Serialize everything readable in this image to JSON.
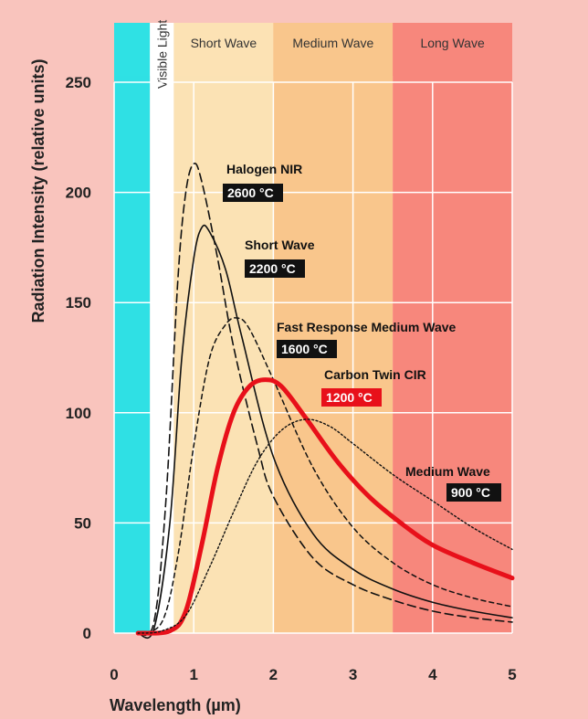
{
  "chart_data": {
    "type": "line",
    "title": "",
    "xlabel": "Wavelength (µm)",
    "ylabel": "Radiation Intensity (relative units)",
    "xlim": [
      0,
      5
    ],
    "ylim": [
      0,
      250
    ],
    "xticks": [
      "0",
      "1",
      "2",
      "3",
      "4",
      "5"
    ],
    "yticks": [
      "0",
      "50",
      "100",
      "150",
      "200",
      "250"
    ],
    "grid": true,
    "bands": [
      {
        "label": "",
        "from": 0,
        "to": 0.45,
        "color": "#2fe0e4"
      },
      {
        "label": "Visible Light",
        "from": 0.45,
        "to": 0.75,
        "color": "#ffffff"
      },
      {
        "label": "Short Wave",
        "from": 0.75,
        "to": 2.0,
        "color": "#fbe2b4"
      },
      {
        "label": "Medium Wave",
        "from": 2.0,
        "to": 3.5,
        "color": "#f9c68c"
      },
      {
        "label": "Long Wave",
        "from": 3.5,
        "to": 5.0,
        "color": "#f7877c"
      }
    ],
    "series": [
      {
        "name": "Halogen NIR",
        "temp": "2600 °C",
        "style": "long-dash",
        "color": "#111111",
        "temp_bg": "#111111",
        "x": [
          0.3,
          0.5,
          0.65,
          0.8,
          0.9,
          1.0,
          1.1,
          1.3,
          1.5,
          1.8,
          2.0,
          2.5,
          3.0,
          3.5,
          4.0,
          4.5,
          5.0
        ],
        "y": [
          0,
          5,
          60,
          160,
          200,
          213,
          205,
          170,
          130,
          85,
          62,
          34,
          22,
          15,
          10,
          7,
          5
        ]
      },
      {
        "name": "Short Wave",
        "temp": "2200 °C",
        "style": "solid",
        "color": "#111111",
        "temp_bg": "#111111",
        "x": [
          0.3,
          0.5,
          0.7,
          0.85,
          1.0,
          1.1,
          1.2,
          1.4,
          1.6,
          2.0,
          2.5,
          3.0,
          3.5,
          4.0,
          4.5,
          5.0
        ],
        "y": [
          0,
          2,
          50,
          125,
          170,
          184,
          182,
          165,
          135,
          80,
          45,
          29,
          20,
          14,
          10,
          7
        ]
      },
      {
        "name": "Fast Response Medium Wave",
        "temp": "1600 °C",
        "style": "short-dash",
        "color": "#111111",
        "temp_bg": "#111111",
        "x": [
          0.3,
          0.6,
          0.8,
          1.0,
          1.2,
          1.4,
          1.55,
          1.7,
          2.0,
          2.5,
          3.0,
          3.5,
          4.0,
          4.5,
          5.0
        ],
        "y": [
          0,
          5,
          35,
          85,
          125,
          140,
          143,
          138,
          115,
          75,
          48,
          32,
          22,
          16,
          12
        ]
      },
      {
        "name": "Carbon Twin CIR",
        "temp": "1200 °C",
        "style": "thick",
        "color": "#e8101a",
        "temp_bg": "#e8101a",
        "x": [
          0.3,
          0.7,
          0.9,
          1.1,
          1.3,
          1.5,
          1.7,
          1.9,
          2.1,
          2.4,
          2.8,
          3.2,
          3.6,
          4.0,
          4.5,
          5.0
        ],
        "y": [
          0,
          1,
          10,
          40,
          75,
          100,
          112,
          115,
          112,
          98,
          78,
          62,
          50,
          40,
          32,
          25
        ]
      },
      {
        "name": "Medium Wave",
        "temp": "900 °C",
        "style": "dotted",
        "color": "#111111",
        "temp_bg": "#111111",
        "x": [
          0.3,
          0.6,
          0.9,
          1.2,
          1.5,
          1.8,
          2.1,
          2.4,
          2.7,
          3.0,
          3.5,
          4.0,
          4.5,
          5.0
        ],
        "y": [
          0,
          1,
          8,
          30,
          55,
          78,
          92,
          97,
          94,
          86,
          72,
          60,
          48,
          38
        ]
      }
    ]
  }
}
